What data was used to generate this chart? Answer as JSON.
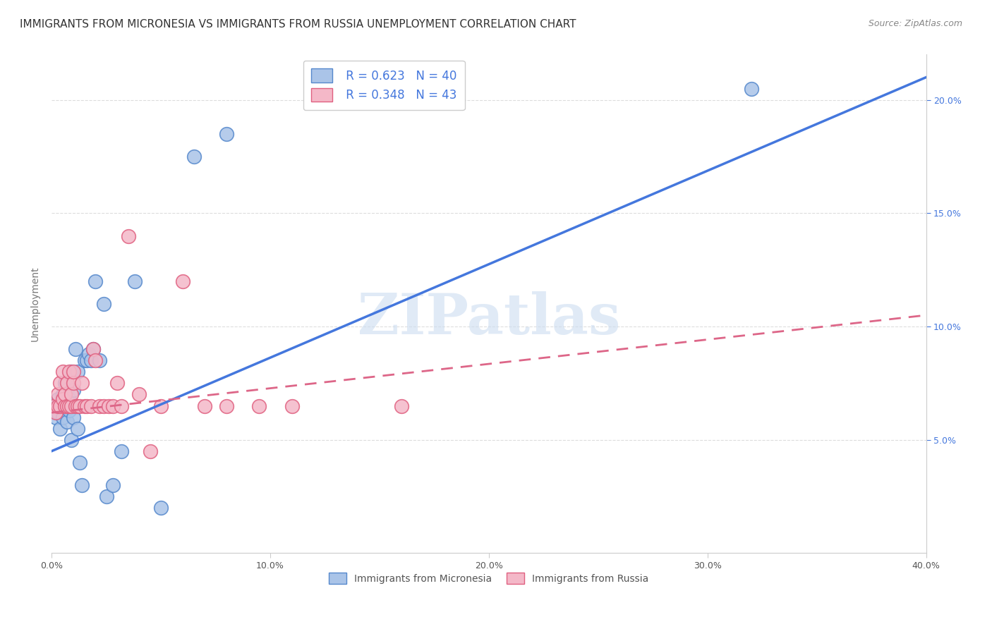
{
  "title": "IMMIGRANTS FROM MICRONESIA VS IMMIGRANTS FROM RUSSIA UNEMPLOYMENT CORRELATION CHART",
  "source": "Source: ZipAtlas.com",
  "ylabel": "Unemployment",
  "x_min": 0.0,
  "x_max": 0.4,
  "y_min": 0.0,
  "y_max": 0.22,
  "x_ticks": [
    0.0,
    0.1,
    0.2,
    0.3,
    0.4
  ],
  "x_tick_labels": [
    "0.0%",
    "10.0%",
    "20.0%",
    "30.0%",
    "40.0%"
  ],
  "y_ticks": [
    0.05,
    0.1,
    0.15,
    0.2
  ],
  "y_tick_labels": [
    "5.0%",
    "10.0%",
    "15.0%",
    "20.0%"
  ],
  "micronesia_color": "#aac4e8",
  "russia_color": "#f4b8c8",
  "micronesia_edge_color": "#5588cc",
  "russia_edge_color": "#e06080",
  "micronesia_line_color": "#4477dd",
  "russia_line_color": "#dd6688",
  "watermark_text": "ZIPatlas",
  "legend_r1": "R = 0.623",
  "legend_n1": "N = 40",
  "legend_r2": "R = 0.348",
  "legend_n2": "N = 43",
  "legend_color": "#4477dd",
  "micronesia_x": [
    0.001,
    0.002,
    0.003,
    0.003,
    0.004,
    0.004,
    0.005,
    0.005,
    0.006,
    0.006,
    0.007,
    0.007,
    0.008,
    0.008,
    0.009,
    0.009,
    0.01,
    0.01,
    0.01,
    0.011,
    0.012,
    0.012,
    0.013,
    0.014,
    0.015,
    0.016,
    0.017,
    0.018,
    0.019,
    0.02,
    0.022,
    0.024,
    0.025,
    0.028,
    0.032,
    0.038,
    0.05,
    0.065,
    0.08,
    0.32
  ],
  "micronesia_y": [
    0.065,
    0.06,
    0.062,
    0.068,
    0.065,
    0.055,
    0.07,
    0.06,
    0.065,
    0.075,
    0.058,
    0.072,
    0.063,
    0.068,
    0.05,
    0.08,
    0.065,
    0.06,
    0.072,
    0.09,
    0.055,
    0.08,
    0.04,
    0.03,
    0.085,
    0.085,
    0.088,
    0.085,
    0.09,
    0.12,
    0.085,
    0.11,
    0.025,
    0.03,
    0.045,
    0.12,
    0.02,
    0.175,
    0.185,
    0.205
  ],
  "russia_x": [
    0.001,
    0.002,
    0.003,
    0.003,
    0.004,
    0.004,
    0.005,
    0.005,
    0.006,
    0.006,
    0.007,
    0.007,
    0.008,
    0.008,
    0.009,
    0.009,
    0.01,
    0.01,
    0.011,
    0.012,
    0.013,
    0.014,
    0.015,
    0.016,
    0.018,
    0.019,
    0.02,
    0.022,
    0.024,
    0.026,
    0.028,
    0.03,
    0.032,
    0.035,
    0.04,
    0.045,
    0.05,
    0.06,
    0.07,
    0.08,
    0.095,
    0.11,
    0.16
  ],
  "russia_y": [
    0.065,
    0.062,
    0.065,
    0.07,
    0.065,
    0.075,
    0.068,
    0.08,
    0.065,
    0.07,
    0.065,
    0.075,
    0.065,
    0.08,
    0.065,
    0.07,
    0.075,
    0.08,
    0.065,
    0.065,
    0.065,
    0.075,
    0.065,
    0.065,
    0.065,
    0.09,
    0.085,
    0.065,
    0.065,
    0.065,
    0.065,
    0.075,
    0.065,
    0.14,
    0.07,
    0.045,
    0.065,
    0.12,
    0.065,
    0.065,
    0.065,
    0.065,
    0.065
  ],
  "background_color": "#ffffff",
  "grid_color": "#dddddd",
  "title_fontsize": 11,
  "axis_label_fontsize": 10,
  "tick_fontsize": 9,
  "blue_line_x0": 0.0,
  "blue_line_y0": 0.045,
  "blue_line_x1": 0.4,
  "blue_line_y1": 0.21,
  "pink_line_x0": 0.0,
  "pink_line_y0": 0.062,
  "pink_line_x1": 0.4,
  "pink_line_y1": 0.105
}
